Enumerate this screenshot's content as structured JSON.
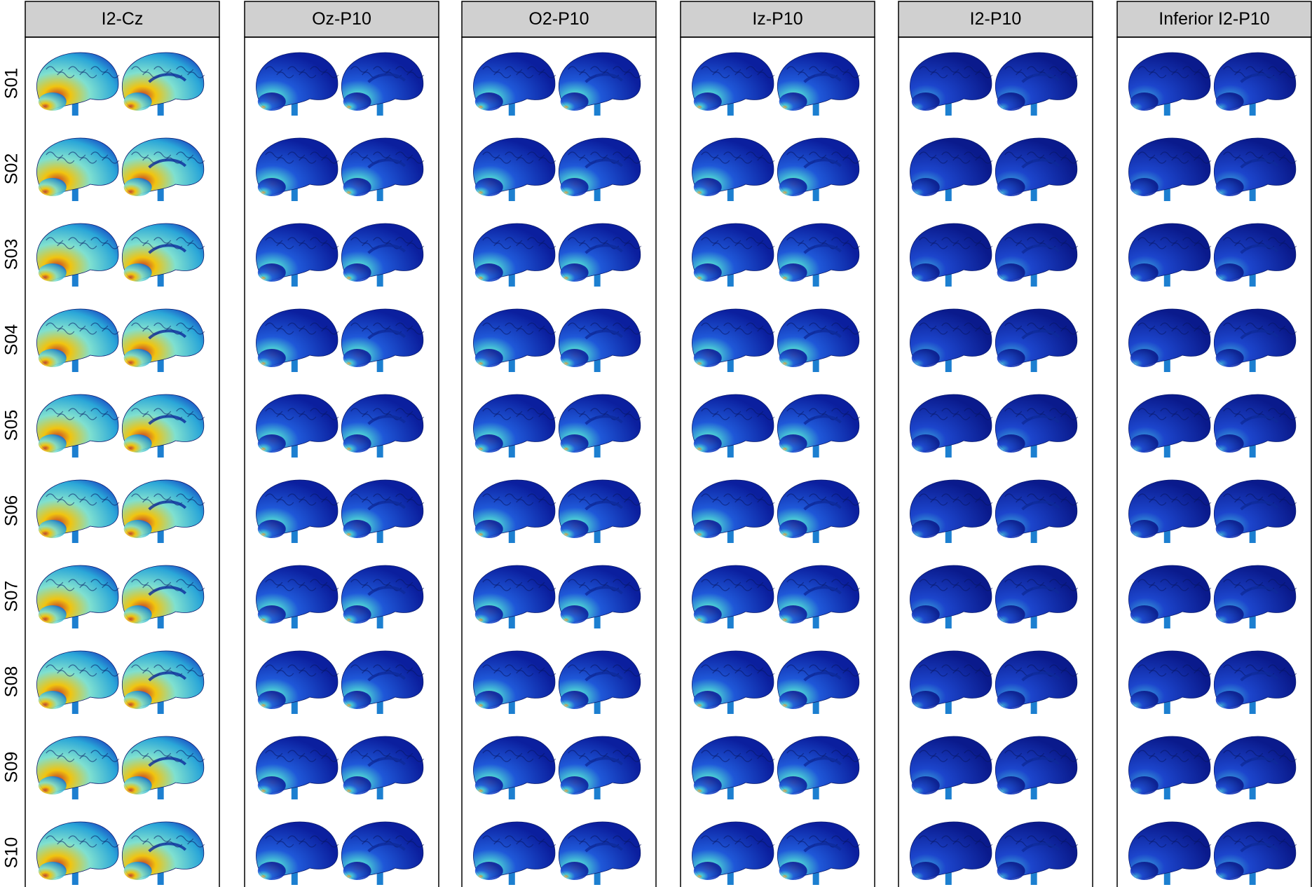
{
  "columns": [
    "I2-Cz",
    "Oz-P10",
    "O2-P10",
    "Iz-P10",
    "I2-P10",
    "Inferior I2-P10"
  ],
  "rows": [
    "S01",
    "S02",
    "S03",
    "S04",
    "S05",
    "S06",
    "S07",
    "S08",
    "S09",
    "S10"
  ]
}
